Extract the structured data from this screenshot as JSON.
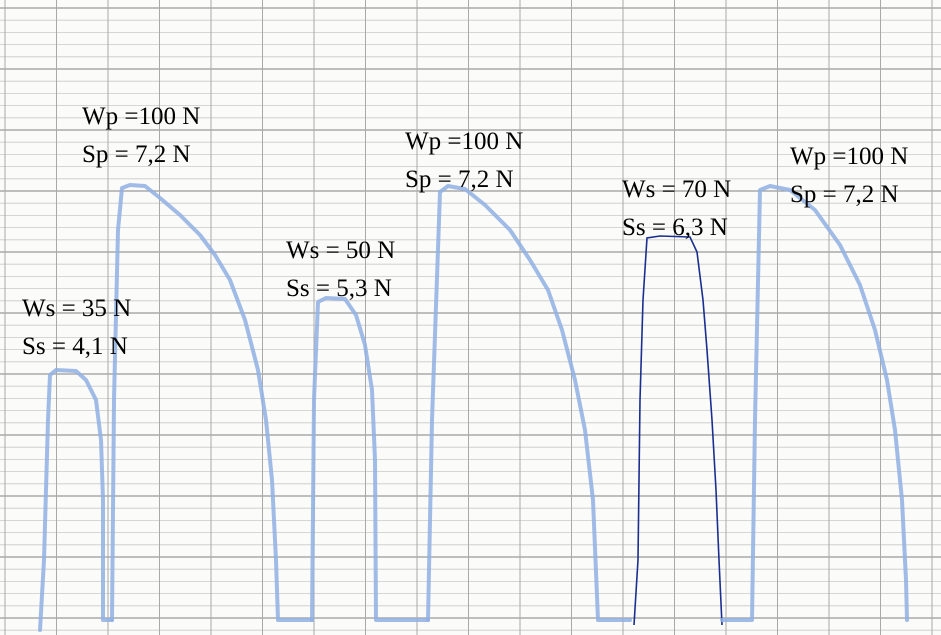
{
  "annotations": [
    {
      "lines": [
        "Ws = 35 N",
        "Ss = 4,1 N"
      ]
    },
    {
      "lines": [
        "Wp =100 N",
        "Sp = 7,2 N"
      ]
    },
    {
      "lines": [
        "Ws = 50 N",
        "Ss = 5,3 N"
      ]
    },
    {
      "lines": [
        "Wp =100 N",
        "Sp = 7,2 N"
      ]
    },
    {
      "lines": [
        "Ws = 70 N",
        "Ss = 6,3 N"
      ]
    },
    {
      "lines": [
        "Wp =100 N",
        "Sp = 7,2 N"
      ]
    }
  ]
}
